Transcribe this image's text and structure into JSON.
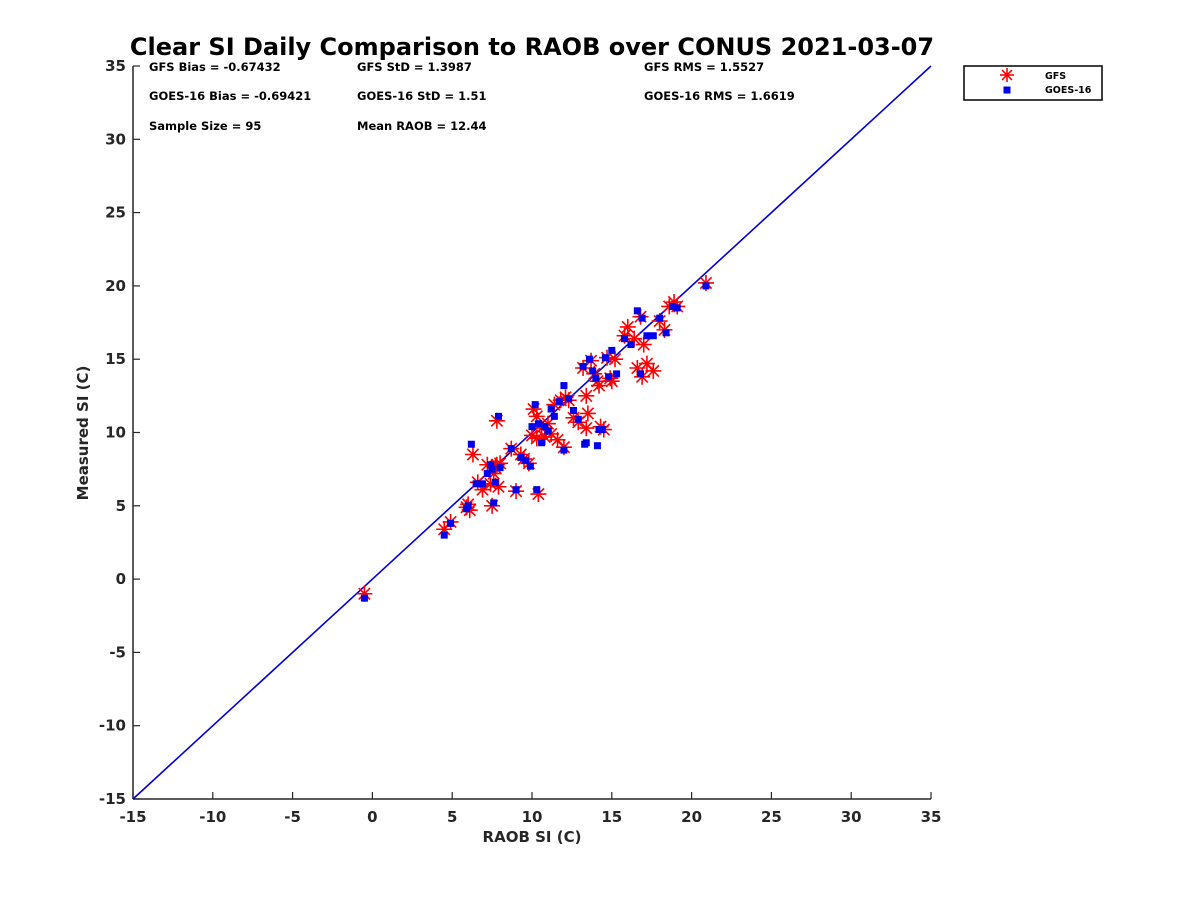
{
  "chart_data": {
    "type": "scatter",
    "title": "Clear SI Daily Comparison to RAOB over CONUS 2021-03-07",
    "xlabel": "RAOB SI (C)",
    "ylabel": "Measured SI (C)",
    "xlim": [
      -15,
      35
    ],
    "ylim": [
      -15,
      35
    ],
    "xticks": [
      "-15",
      "-10",
      "-5",
      "0",
      "5",
      "10",
      "15",
      "20",
      "25",
      "30",
      "35"
    ],
    "yticks": [
      "-15",
      "-10",
      "-5",
      "0",
      "5",
      "10",
      "15",
      "20",
      "25",
      "30",
      "35"
    ],
    "grid": false,
    "legend_position": "outside-top-right",
    "reference_line": {
      "from": [
        -15,
        -15
      ],
      "to": [
        35,
        35
      ],
      "color": "#0000dd"
    },
    "stats": [
      [
        "GFS Bias = -0.67432",
        "GFS StD = 1.3987",
        "GFS RMS = 1.5527"
      ],
      [
        "GOES-16 Bias = -0.69421",
        "GOES-16 StD = 1.51",
        "GOES-16 RMS = 1.6619"
      ],
      [
        "Sample Size = 95",
        "Mean RAOB = 12.44"
      ]
    ],
    "series": [
      {
        "name": "GFS",
        "marker": "asterisk",
        "color": "#ff0000",
        "x": [
          -0.5,
          4.5,
          4.9,
          5.9,
          6.0,
          6.1,
          6.3,
          6.6,
          6.9,
          7.2,
          7.4,
          7.5,
          7.6,
          7.7,
          7.8,
          7.9,
          8.0,
          8.7,
          9.0,
          9.3,
          9.5,
          9.8,
          10.0,
          10.1,
          10.3,
          10.4,
          10.6,
          10.8,
          11.0,
          11.2,
          11.4,
          11.6,
          11.8,
          12.0,
          12.3,
          12.6,
          12.9,
          13.2,
          13.4,
          13.5,
          13.7,
          13.9,
          14.1,
          14.3,
          14.5,
          14.7,
          14.9,
          15.0,
          15.2,
          15.8,
          16.0,
          16.4,
          16.6,
          16.8,
          17.0,
          17.2,
          17.6,
          18.0,
          18.3,
          18.6,
          18.9,
          19.1,
          20.9,
          16.9,
          14.2,
          13.4,
          10.3,
          12.1,
          7.8
        ],
        "y": [
          -1.0,
          3.4,
          3.9,
          4.9,
          5.1,
          4.7,
          8.5,
          6.6,
          6.1,
          7.8,
          6.5,
          5.0,
          7.2,
          7.6,
          10.8,
          6.3,
          7.9,
          8.9,
          6.0,
          8.5,
          8.2,
          7.9,
          9.8,
          11.6,
          11.1,
          5.8,
          10.3,
          9.7,
          10.6,
          9.9,
          11.9,
          9.5,
          12.2,
          9.0,
          12.2,
          11.0,
          10.7,
          14.4,
          12.5,
          11.3,
          14.9,
          14.0,
          13.5,
          10.4,
          10.2,
          15.1,
          13.7,
          13.5,
          15.0,
          16.6,
          17.2,
          16.4,
          14.4,
          17.9,
          16.0,
          14.7,
          14.2,
          17.6,
          17.0,
          18.6,
          18.9,
          18.6,
          20.2,
          13.8,
          13.2,
          10.3,
          9.6,
          12.4,
          7.8
        ]
      },
      {
        "name": "GOES-16",
        "marker": "square",
        "color": "#0000ee",
        "x": [
          -0.5,
          4.5,
          4.9,
          5.9,
          6.0,
          6.2,
          6.5,
          6.9,
          7.2,
          7.4,
          7.5,
          7.6,
          7.7,
          7.9,
          8.0,
          8.7,
          9.0,
          9.3,
          9.6,
          9.9,
          10.0,
          10.2,
          10.4,
          10.6,
          10.8,
          11.0,
          11.2,
          11.4,
          11.7,
          12.0,
          12.3,
          12.6,
          12.9,
          13.2,
          13.3,
          13.6,
          13.8,
          14.0,
          14.2,
          14.4,
          14.6,
          14.8,
          15.0,
          15.3,
          15.8,
          16.2,
          16.6,
          16.9,
          17.2,
          17.6,
          18.0,
          18.4,
          18.8,
          19.1,
          20.9,
          16.8,
          13.4,
          14.1,
          10.3,
          12.0
        ],
        "y": [
          -1.3,
          3.0,
          3.8,
          4.8,
          5.0,
          9.2,
          6.5,
          6.5,
          7.2,
          7.8,
          7.5,
          5.2,
          6.6,
          11.1,
          7.6,
          8.9,
          6.1,
          8.3,
          8.1,
          7.7,
          10.4,
          11.9,
          10.6,
          9.3,
          10.4,
          10.1,
          11.6,
          11.1,
          12.1,
          13.2,
          12.3,
          11.5,
          10.9,
          14.5,
          9.2,
          15.0,
          14.2,
          13.7,
          10.2,
          10.2,
          15.1,
          13.8,
          15.6,
          14.0,
          16.4,
          16.0,
          18.3,
          17.8,
          16.6,
          16.6,
          17.8,
          16.8,
          18.6,
          18.5,
          20.0,
          14.0,
          9.3,
          9.1,
          6.1,
          8.8
        ]
      }
    ]
  }
}
